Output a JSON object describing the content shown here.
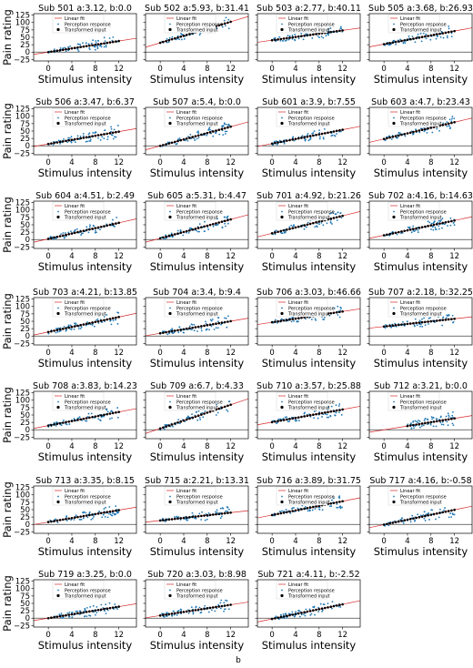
{
  "figure": {
    "page_label": "b",
    "legend": {
      "linear_fit": "Linear fit",
      "perception": "Perception response",
      "transformed": "Transformed input"
    },
    "colors": {
      "fit": "#d62728",
      "perception": "#1f77b4",
      "transformed": "#000000",
      "baseline": "#444444"
    }
  },
  "chart_data": {
    "type": "scatter",
    "layout": {
      "rows": 7,
      "cols": 4
    },
    "ylabel": "Pain rating",
    "xlabel": "Stimulus intensity",
    "xticks": [
      "0",
      "4",
      "8",
      "12"
    ],
    "yticks": [
      "125",
      "100",
      "75",
      "50",
      "25",
      "0",
      "−25"
    ],
    "xlim": [
      -2.5,
      15
    ],
    "ylim": [
      -30,
      130
    ],
    "panels": [
      {
        "title": "Sub 501 a:3.12, b:0.0",
        "a": 3.12,
        "b": 0.0,
        "x_range": [
          0,
          12
        ]
      },
      {
        "title": "Sub 502 a:5.93, b:31.41",
        "a": 5.93,
        "b": 31.41,
        "x_range": [
          0,
          12
        ]
      },
      {
        "title": "Sub 503 a:2.77, b:40.11",
        "a": 2.77,
        "b": 40.11,
        "x_range": [
          0,
          12
        ]
      },
      {
        "title": "Sub 505 a:3.68, b:26.93",
        "a": 3.68,
        "b": 26.93,
        "x_range": [
          0,
          12
        ]
      },
      {
        "title": "Sub 506 a:3.47, b:6.37",
        "a": 3.47,
        "b": 6.37,
        "x_range": [
          0,
          12
        ]
      },
      {
        "title": "Sub 507 a:5.4, b:0.0",
        "a": 5.4,
        "b": 0.0,
        "x_range": [
          0,
          12
        ]
      },
      {
        "title": "Sub 601 a:3.9, b:7.55",
        "a": 3.9,
        "b": 7.55,
        "x_range": [
          0,
          12
        ]
      },
      {
        "title": "Sub 603 a:4.7, b:23.43",
        "a": 4.7,
        "b": 23.43,
        "x_range": [
          0,
          12
        ]
      },
      {
        "title": "Sub 604 a:4.51, b:2.49",
        "a": 4.51,
        "b": 2.49,
        "x_range": [
          0,
          12
        ]
      },
      {
        "title": "Sub 605 a:5.31, b:4.47",
        "a": 5.31,
        "b": 4.47,
        "x_range": [
          0,
          12
        ]
      },
      {
        "title": "Sub 701 a:4.92, b:21.26",
        "a": 4.92,
        "b": 21.26,
        "x_range": [
          0,
          12
        ]
      },
      {
        "title": "Sub 702 a:4.16, b:14.63",
        "a": 4.16,
        "b": 14.63,
        "x_range": [
          0,
          12
        ]
      },
      {
        "title": "Sub 703 a:4.21, b:13.85",
        "a": 4.21,
        "b": 13.85,
        "x_range": [
          0,
          12
        ]
      },
      {
        "title": "Sub 704 a:3.4, b:9.4",
        "a": 3.4,
        "b": 9.4,
        "x_range": [
          0,
          12
        ]
      },
      {
        "title": "Sub 706 a:3.03, b:46.66",
        "a": 3.03,
        "b": 46.66,
        "x_range": [
          0,
          12
        ]
      },
      {
        "title": "Sub 707 a:2.18, b:32.25",
        "a": 2.18,
        "b": 32.25,
        "x_range": [
          0,
          12
        ]
      },
      {
        "title": "Sub 708 a:3.83, b:14.23",
        "a": 3.83,
        "b": 14.23,
        "x_range": [
          0,
          12
        ]
      },
      {
        "title": "Sub 709 a:6.7, b:4.33",
        "a": 6.7,
        "b": 4.33,
        "x_range": [
          0,
          12
        ]
      },
      {
        "title": "Sub 710 a:3.57, b:25.88",
        "a": 3.57,
        "b": 25.88,
        "x_range": [
          0,
          12
        ]
      },
      {
        "title": "Sub 712 a:3.21, b:0.0",
        "a": 3.21,
        "b": 0.0,
        "x_range": [
          4,
          12
        ]
      },
      {
        "title": "Sub 713 a:3.35, b:8.15",
        "a": 3.35,
        "b": 8.15,
        "x_range": [
          0,
          12
        ]
      },
      {
        "title": "Sub 715 a:2.21, b:13.31",
        "a": 2.21,
        "b": 13.31,
        "x_range": [
          0,
          12
        ]
      },
      {
        "title": "Sub 716 a:3.89, b:31.75",
        "a": 3.89,
        "b": 31.75,
        "x_range": [
          0,
          12
        ]
      },
      {
        "title": "Sub 717 a:4.16, b:-0.58",
        "a": 4.16,
        "b": -0.58,
        "x_range": [
          0,
          12
        ]
      },
      {
        "title": "Sub 719 a:3.25, b:0.0",
        "a": 3.25,
        "b": 0.0,
        "x_range": [
          0,
          12
        ]
      },
      {
        "title": "Sub 720 a:3.03, b:8.98",
        "a": 3.03,
        "b": 8.98,
        "x_range": [
          0,
          12
        ]
      },
      {
        "title": "Sub 721 a:4.11, b:-2.52",
        "a": 4.11,
        "b": -2.52,
        "x_range": [
          0,
          12
        ]
      }
    ]
  }
}
